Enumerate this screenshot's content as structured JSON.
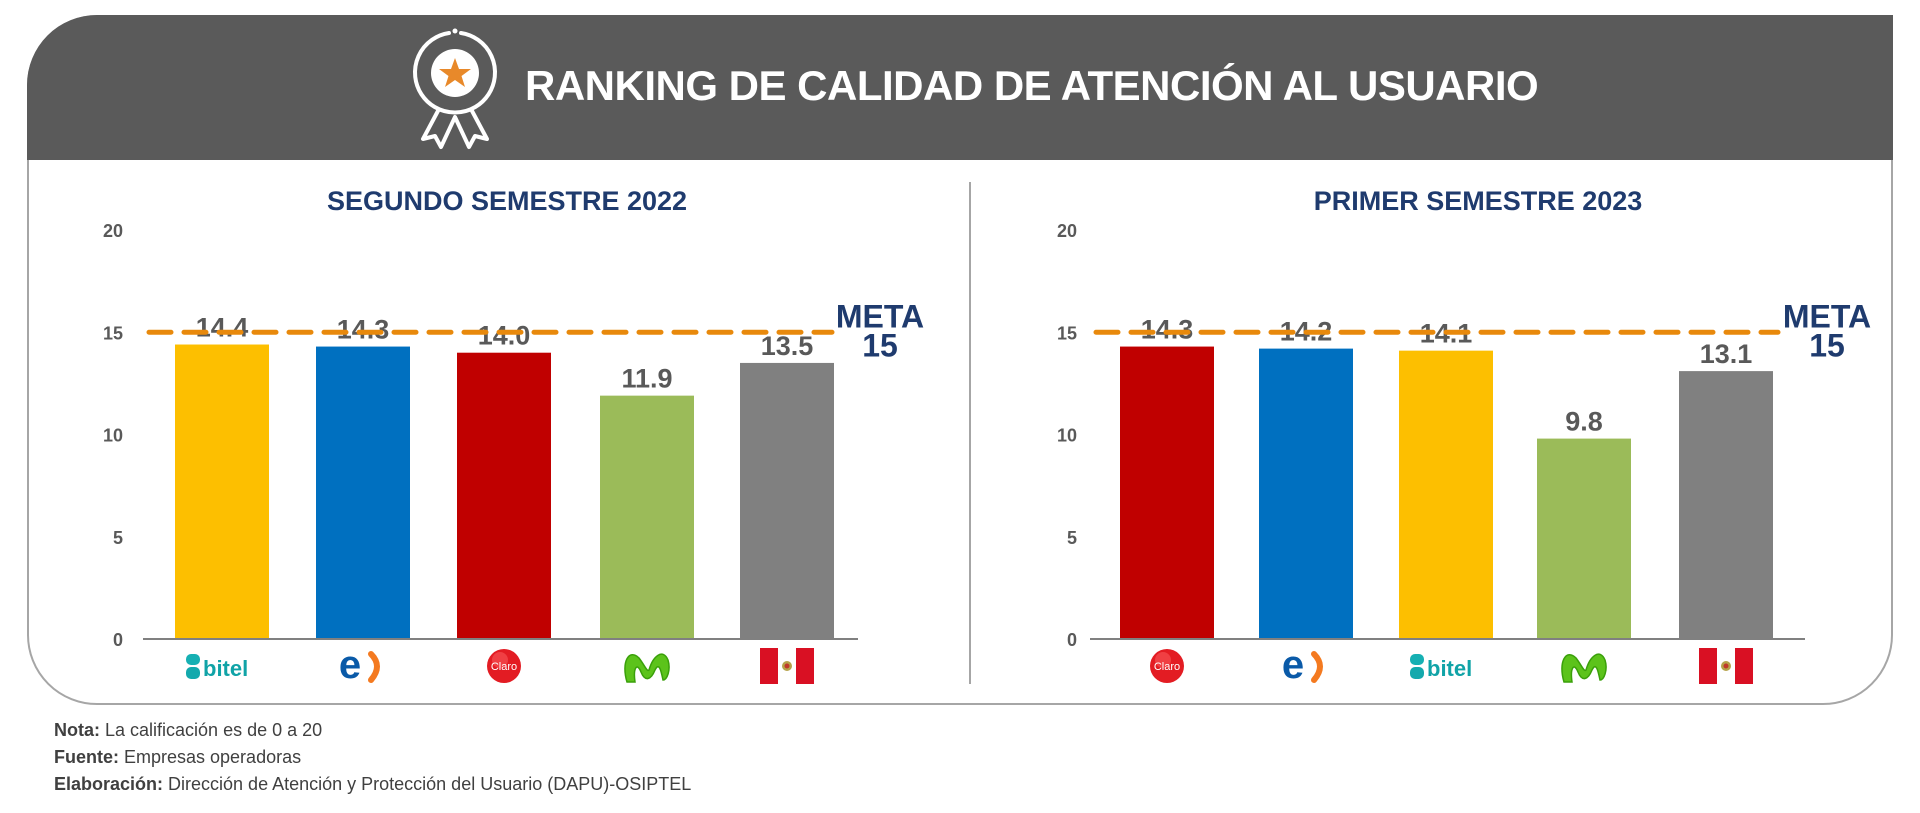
{
  "header": {
    "title": "RANKING DE CALIDAD DE ATENCIÓN AL USUARIO",
    "icon": "award-ribbon-star-icon"
  },
  "colors": {
    "banner": "#5a5a5a",
    "title_blue": "#1f3b6e",
    "meta_line": "#e8890c",
    "label_gray": "#595959",
    "bitel": "#fdbf00",
    "entel": "#0070c0",
    "claro": "#c00000",
    "movistar": "#9bbb59",
    "peru": "#808080"
  },
  "chart_data": [
    {
      "type": "bar",
      "title": "SEGUNDO SEMESTRE 2022",
      "categories": [
        "bitel",
        "entel",
        "claro",
        "movistar",
        "peru"
      ],
      "values": [
        14.4,
        14.3,
        14.0,
        11.9,
        13.5
      ],
      "value_labels": [
        "14.4",
        "14.3",
        "14.0",
        "11.9",
        "13.5"
      ],
      "colors": [
        "#fdbf00",
        "#0070c0",
        "#c00000",
        "#9bbb59",
        "#808080"
      ],
      "yticks": [
        "0",
        "5",
        "10",
        "15",
        "20"
      ],
      "ylim": [
        0,
        20
      ],
      "target": {
        "value": 15,
        "label_line1": "META",
        "label_line2": "15"
      },
      "xlabel": "",
      "ylabel": "",
      "grid": false
    },
    {
      "type": "bar",
      "title": "PRIMER SEMESTRE 2023",
      "categories": [
        "claro",
        "entel",
        "bitel",
        "movistar",
        "peru"
      ],
      "values": [
        14.3,
        14.2,
        14.1,
        9.8,
        13.1
      ],
      "value_labels": [
        "14.3",
        "14.2",
        "14.1",
        "9.8",
        "13.1"
      ],
      "colors": [
        "#c00000",
        "#0070c0",
        "#fdbf00",
        "#9bbb59",
        "#808080"
      ],
      "yticks": [
        "0",
        "5",
        "10",
        "15",
        "20"
      ],
      "ylim": [
        0,
        20
      ],
      "target": {
        "value": 15,
        "label_line1": "META",
        "label_line2": "15"
      },
      "xlabel": "",
      "ylabel": "",
      "grid": false
    }
  ],
  "logos": {
    "bitel": "bitel",
    "claro": "Claro",
    "entel": "e"
  },
  "footer": {
    "nota_label": "Nota:",
    "nota_text": " La calificación es de 0 a 20",
    "fuente_label": "Fuente:",
    "fuente_text": " Empresas operadoras",
    "elaboracion_label": "Elaboración:",
    "elaboracion_text": " Dirección de Atención y Protección del Usuario (DAPU)-OSIPTEL"
  }
}
